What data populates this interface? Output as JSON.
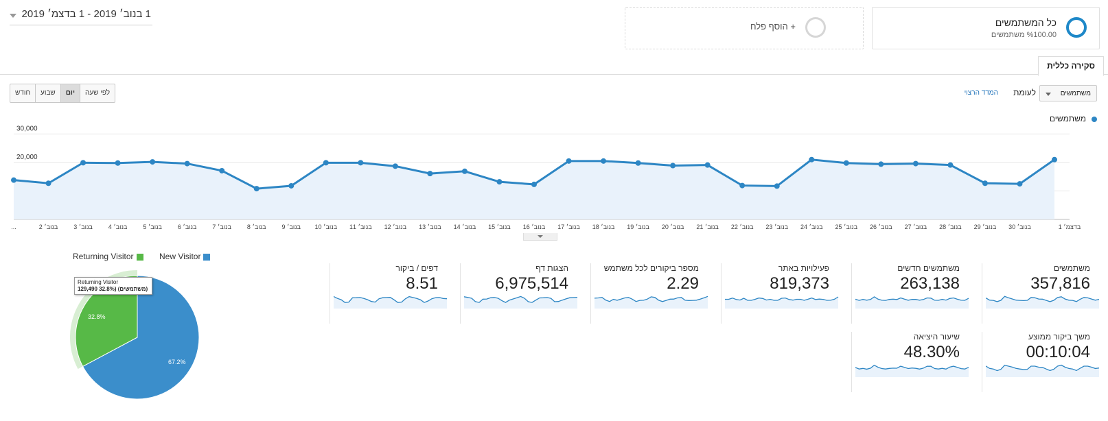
{
  "segments": {
    "all": {
      "title": "כל המשתמשים",
      "subtitle": "%100.00 משתמשים"
    },
    "add": {
      "label": "+ הוסף פלח"
    }
  },
  "date_range": {
    "label": "1 בנוב׳ 2019 - 1 בדצמ׳ 2019"
  },
  "tab": {
    "label": "סקירה כללית"
  },
  "controls": {
    "metric": "משתמשים",
    "vs": "לעומת",
    "select_metric": "המדד הרצוי",
    "granularity": [
      "לפי שעה",
      "יום",
      "שבוע",
      "חודש"
    ],
    "active_granularity": "יום"
  },
  "colors": {
    "accent": "#2d86c4",
    "area": "#e9f2fb",
    "green": "#57b947",
    "blue": "#3b8ecb"
  },
  "chart_data": {
    "type": "line",
    "legend": "משתמשים",
    "y_ticks": [
      "30,000",
      "20,000",
      "10,000"
    ],
    "ylim": [
      0,
      30000
    ],
    "x_labels": [
      "בדצמ׳ 1",
      "בנוב׳ 30",
      "בנוב׳ 29",
      "בנוב׳ 28",
      "בנוב׳ 27",
      "בנוב׳ 26",
      "בנוב׳ 25",
      "בנוב׳ 24",
      "בנוב׳ 23",
      "בנוב׳ 22",
      "בנוב׳ 21",
      "בנוב׳ 20",
      "בנוב׳ 19",
      "בנוב׳ 18",
      "בנוב׳ 17",
      "בנוב׳ 16",
      "בנוב׳ 15",
      "בנוב׳ 14",
      "בנוב׳ 13",
      "בנוב׳ 12",
      "בנוב׳ 11",
      "בנוב׳ 10",
      "בנוב׳ 9",
      "בנוב׳ 8",
      "בנוב׳ 7",
      "בנוב׳ 6",
      "בנוב׳ 5",
      "בנוב׳ 4",
      "בנוב׳ 3",
      "בנוב׳ 2",
      "..."
    ],
    "values": [
      21000,
      12500,
      12700,
      19100,
      19600,
      19400,
      19800,
      21000,
      11700,
      11900,
      19100,
      18900,
      19800,
      20500,
      20500,
      12300,
      13200,
      16900,
      16100,
      18700,
      19900,
      19900,
      11800,
      10800,
      17100,
      19600,
      20200,
      19800,
      19900,
      12700,
      13800
    ]
  },
  "scorecards": [
    {
      "title": "משתמשים",
      "value": "357,816"
    },
    {
      "title": "משתמשים חדשים",
      "value": "263,138"
    },
    {
      "title": "פעילויות באתר",
      "value": "819,373"
    },
    {
      "title": "מספר ביקורים לכל משתמש",
      "value": "2.29"
    },
    {
      "title": "הצגות דף",
      "value": "6,975,514"
    },
    {
      "title": "דפים / ביקור",
      "value": "8.51"
    },
    {
      "title": "משך ביקור ממוצע",
      "value": "00:10:04"
    },
    {
      "title": "שיעור היציאה",
      "value": "48.30%"
    }
  ],
  "pie": {
    "legend": [
      {
        "label": "New Visitor",
        "color": "#3b8ecb"
      },
      {
        "label": "Returning Visitor",
        "color": "#57b947"
      }
    ],
    "slices": [
      {
        "label": "New Visitor",
        "percent": 67.2,
        "pct_label": "67.2%"
      },
      {
        "label": "Returning Visitor",
        "percent": 32.8,
        "pct_label": "32.8%"
      }
    ],
    "tooltip": {
      "line1": "Returning Visitor",
      "line2": "129,490 32.8%) (משתמשים)"
    }
  }
}
